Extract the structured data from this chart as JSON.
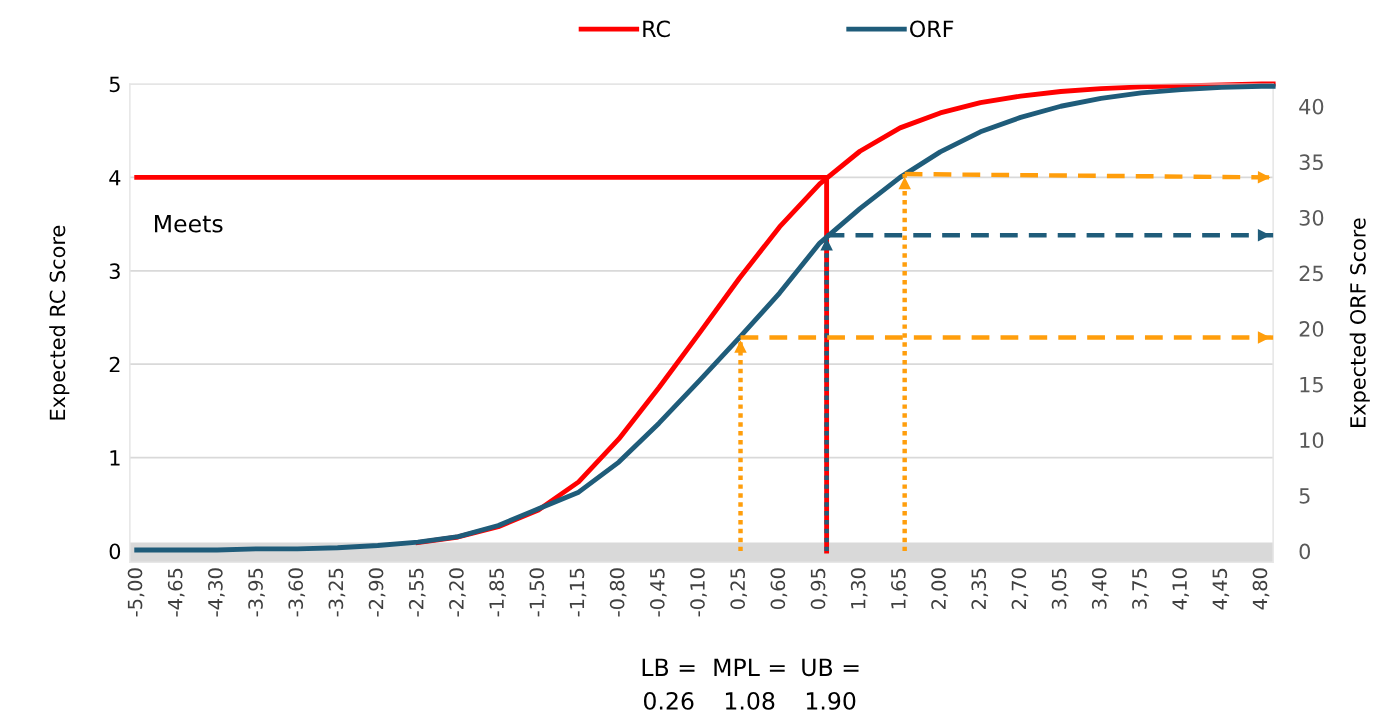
{
  "chart_data": {
    "type": "line",
    "ylabel": "Expected RC Score",
    "y2label": "Expected ORF Score",
    "xlim": [
      -5.06,
      4.9
    ],
    "xticks": [
      {
        "value": -5.0,
        "label": "-5,00"
      },
      {
        "value": -4.65,
        "label": "-4,65"
      },
      {
        "value": -4.3,
        "label": "-4,30"
      },
      {
        "value": -3.95,
        "label": "-3,95"
      },
      {
        "value": -3.6,
        "label": "-3,60"
      },
      {
        "value": -3.25,
        "label": "-3,25"
      },
      {
        "value": -2.9,
        "label": "-2,90"
      },
      {
        "value": -2.55,
        "label": "-2,55"
      },
      {
        "value": -2.2,
        "label": "-2,20"
      },
      {
        "value": -1.85,
        "label": "-1,85"
      },
      {
        "value": -1.5,
        "label": "-1,50"
      },
      {
        "value": -1.15,
        "label": "-1,15"
      },
      {
        "value": -0.8,
        "label": "-0,80"
      },
      {
        "value": -0.45,
        "label": "-0,45"
      },
      {
        "value": -0.1,
        "label": "-0,10"
      },
      {
        "value": 0.25,
        "label": "0,25"
      },
      {
        "value": 0.6,
        "label": "0,60"
      },
      {
        "value": 0.95,
        "label": "0,95"
      },
      {
        "value": 1.3,
        "label": "1,30"
      },
      {
        "value": 1.65,
        "label": "1,65"
      },
      {
        "value": 2.0,
        "label": "2,00"
      },
      {
        "value": 2.35,
        "label": "2,35"
      },
      {
        "value": 2.7,
        "label": "2,70"
      },
      {
        "value": 3.05,
        "label": "3,05"
      },
      {
        "value": 3.4,
        "label": "3,40"
      },
      {
        "value": 3.75,
        "label": "3,75"
      },
      {
        "value": 4.1,
        "label": "4,10"
      },
      {
        "value": 4.45,
        "label": "4,45"
      },
      {
        "value": 4.8,
        "label": "4,80"
      }
    ],
    "ylim": [
      -0.12,
      5
    ],
    "yticks": [
      0,
      1,
      2,
      3,
      4,
      5
    ],
    "y2lim": [
      -1.0,
      42
    ],
    "y2ticks": [
      0,
      5,
      10,
      15,
      20,
      25,
      30,
      35,
      40
    ],
    "grid": "y",
    "legend": "top",
    "bands": [
      {
        "axis": "y",
        "from": -0.12,
        "to": 0.09,
        "color": "#d9d9d9"
      }
    ],
    "x": [
      -5.0,
      -4.65,
      -4.3,
      -3.95,
      -3.6,
      -3.25,
      -2.9,
      -2.55,
      -2.2,
      -1.85,
      -1.5,
      -1.15,
      -0.8,
      -0.45,
      -0.1,
      0.25,
      0.6,
      0.95,
      1.3,
      1.65,
      2.0,
      2.35,
      2.7,
      3.05,
      3.4,
      3.75,
      4.1,
      4.45,
      4.8,
      4.9
    ],
    "series": [
      {
        "name": "RC",
        "color": "#ff0000",
        "values": [
          null,
          null,
          null,
          null,
          null,
          null,
          null,
          0.09,
          0.15,
          0.26,
          0.44,
          0.74,
          1.2,
          1.75,
          2.33,
          2.92,
          3.47,
          3.93,
          4.28,
          4.53,
          4.69,
          4.8,
          4.87,
          4.92,
          4.95,
          4.97,
          4.98,
          4.99,
          5.0,
          5.0
        ]
      },
      {
        "name": "ORF",
        "color": "#1f5c7a",
        "axis": "y2",
        "values": [
          0.1,
          0.1,
          0.1,
          0.2,
          0.2,
          0.3,
          0.5,
          0.8,
          1.3,
          2.3,
          3.8,
          5.3,
          8.0,
          11.5,
          15.3,
          19.2,
          23.2,
          27.7,
          30.8,
          33.6,
          35.9,
          37.7,
          39.0,
          40.0,
          40.7,
          41.2,
          41.5,
          41.7,
          41.8,
          41.8
        ]
      },
      {
        "color": "#ff0000",
        "x": [
          -5.0,
          1.01,
          1.01
        ],
        "values": [
          4,
          4,
          0
        ],
        "line_style": "solid"
      },
      {
        "color": "#1f5c7a",
        "axis": "y2",
        "x": [
          1.01,
          1.01
        ],
        "values": [
          0,
          28.4
        ],
        "line_style": "dotted"
      },
      {
        "color": "#1f5c7a",
        "axis": "y2",
        "x": [
          1.01,
          4.9
        ],
        "values": [
          28.4,
          28.4
        ],
        "line_style": "dashed"
      },
      {
        "color": "#ff9e0c",
        "axis": "y2",
        "x": [
          0.26,
          0.26
        ],
        "values": [
          0,
          19.2
        ],
        "line_style": "dotted"
      },
      {
        "color": "#ff9e0c",
        "axis": "y2",
        "x": [
          0.26,
          4.9
        ],
        "values": [
          19.2,
          19.2
        ],
        "line_style": "dashed"
      },
      {
        "color": "#ff9e0c",
        "axis": "y2",
        "x": [
          1.69,
          1.69
        ],
        "values": [
          0,
          33.9
        ],
        "line_style": "dotted"
      },
      {
        "color": "#ff9e0c",
        "axis": "y2",
        "x": [
          1.69,
          4.9
        ],
        "values": [
          33.9,
          33.6
        ],
        "line_style": "dashed"
      }
    ],
    "annotations": [
      "Meets",
      "LB =\n0.26",
      "MPL =\n1.08",
      "UB =\n1.90"
    ]
  }
}
